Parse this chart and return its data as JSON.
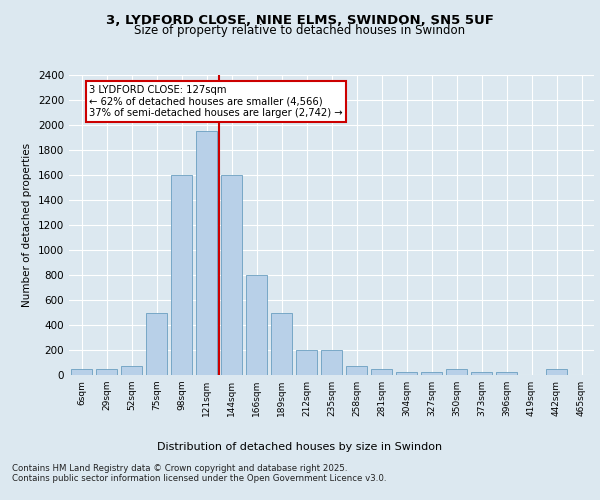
{
  "title_line1": "3, LYDFORD CLOSE, NINE ELMS, SWINDON, SN5 5UF",
  "title_line2": "Size of property relative to detached houses in Swindon",
  "xlabel": "Distribution of detached houses by size in Swindon",
  "ylabel": "Number of detached properties",
  "categories": [
    "6sqm",
    "29sqm",
    "52sqm",
    "75sqm",
    "98sqm",
    "121sqm",
    "144sqm",
    "166sqm",
    "189sqm",
    "212sqm",
    "235sqm",
    "258sqm",
    "281sqm",
    "304sqm",
    "327sqm",
    "350sqm",
    "373sqm",
    "396sqm",
    "419sqm",
    "442sqm",
    "465sqm"
  ],
  "values": [
    50,
    50,
    75,
    500,
    1600,
    1950,
    1600,
    800,
    500,
    200,
    200,
    75,
    50,
    25,
    25,
    50,
    25,
    25,
    0,
    50,
    0
  ],
  "bar_color": "#b8d0e8",
  "bar_edge_color": "#6a9fc0",
  "property_line_x": 5.5,
  "annotation_text": "3 LYDFORD CLOSE: 127sqm\n← 62% of detached houses are smaller (4,566)\n37% of semi-detached houses are larger (2,742) →",
  "annotation_box_color": "#ffffff",
  "annotation_box_edge_color": "#cc0000",
  "vline_color": "#cc0000",
  "ylim": [
    0,
    2400
  ],
  "yticks": [
    0,
    200,
    400,
    600,
    800,
    1000,
    1200,
    1400,
    1600,
    1800,
    2000,
    2200,
    2400
  ],
  "background_color": "#dce8f0",
  "plot_bg_color": "#dce8f0",
  "footer_line1": "Contains HM Land Registry data © Crown copyright and database right 2025.",
  "footer_line2": "Contains public sector information licensed under the Open Government Licence v3.0."
}
